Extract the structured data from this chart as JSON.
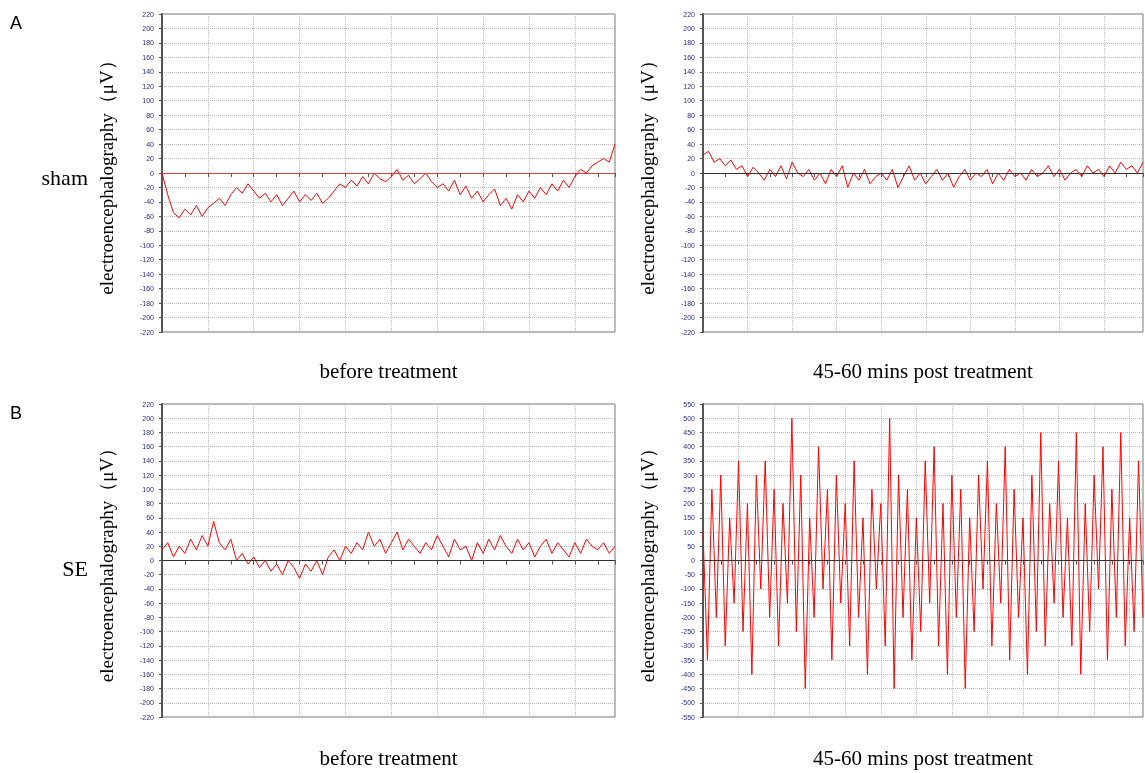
{
  "chart_data": [
    {
      "type": "line",
      "xlabel": "before treatment",
      "ylabel": "electroencephalography（μV）",
      "annotations": [
        "A",
        "sham"
      ],
      "grid": true,
      "tick_labels": "y",
      "line_style": "solid",
      "ylim": [
        -220,
        220
      ],
      "yticks": [
        -220,
        -200,
        -180,
        -160,
        -140,
        -120,
        -100,
        -80,
        -60,
        -40,
        -20,
        0,
        20,
        40,
        60,
        80,
        100,
        120,
        140,
        160,
        180,
        200,
        220
      ],
      "ref_lines": [
        {
          "axis": "y",
          "value": 0,
          "color": "#e03c3c"
        }
      ],
      "categories": [
        null,
        null,
        null,
        null,
        null,
        null,
        null,
        null,
        null,
        null,
        null,
        null,
        null,
        null,
        null,
        null,
        null,
        null,
        null,
        null,
        null,
        null,
        null,
        null,
        null,
        null,
        null,
        null,
        null,
        null,
        null,
        null,
        null,
        null,
        null,
        null,
        null,
        null,
        null,
        null,
        null,
        null,
        null,
        null,
        null,
        null,
        null,
        null,
        null,
        null,
        null,
        null,
        null,
        null,
        null,
        null,
        null,
        null,
        null,
        null,
        null,
        null,
        null,
        null,
        null,
        null,
        null,
        null,
        null,
        null,
        null,
        null,
        null,
        null,
        null,
        null,
        null,
        null,
        null,
        null
      ],
      "series": [
        {
          "color": "#ff0000",
          "values": [
            0,
            -30,
            -55,
            -62,
            -50,
            -58,
            -45,
            -60,
            -48,
            -42,
            -35,
            -45,
            -30,
            -20,
            -28,
            -15,
            -25,
            -35,
            -28,
            -40,
            -30,
            -45,
            -35,
            -25,
            -40,
            -30,
            -38,
            -28,
            -42,
            -35,
            -25,
            -15,
            -20,
            -10,
            -18,
            -5,
            -15,
            0,
            -8,
            -12,
            -5,
            5,
            -10,
            -3,
            -15,
            -8,
            0,
            -12,
            -20,
            -15,
            -25,
            -10,
            -30,
            -18,
            -35,
            -25,
            -40,
            -30,
            -22,
            -45,
            -35,
            -50,
            -30,
            -40,
            -25,
            -35,
            -20,
            -30,
            -15,
            -25,
            -10,
            -20,
            -5,
            5,
            0,
            10,
            15,
            20,
            15,
            40
          ]
        }
      ]
    },
    {
      "type": "line",
      "xlabel": "45-60 mins post treatment",
      "ylabel": "electroencephalography（μV）",
      "grid": true,
      "tick_labels": "y",
      "line_style": "solid",
      "ylim": [
        -220,
        220
      ],
      "yticks": [
        -220,
        -200,
        -180,
        -160,
        -140,
        -120,
        -100,
        -80,
        -60,
        -40,
        -20,
        0,
        20,
        40,
        60,
        80,
        100,
        120,
        140,
        160,
        180,
        200,
        220
      ],
      "ref_lines": [
        {
          "axis": "y",
          "value": 0,
          "color": "#333333"
        }
      ],
      "categories": [
        null,
        null,
        null,
        null,
        null,
        null,
        null,
        null,
        null,
        null,
        null,
        null,
        null,
        null,
        null,
        null,
        null,
        null,
        null,
        null,
        null,
        null,
        null,
        null,
        null,
        null,
        null,
        null,
        null,
        null,
        null,
        null,
        null,
        null,
        null,
        null,
        null,
        null,
        null,
        null,
        null,
        null,
        null,
        null,
        null,
        null,
        null,
        null,
        null,
        null,
        null,
        null,
        null,
        null,
        null,
        null,
        null,
        null,
        null,
        null,
        null,
        null,
        null,
        null,
        null,
        null,
        null,
        null,
        null,
        null,
        null,
        null,
        null,
        null,
        null,
        null,
        null,
        null,
        null,
        null
      ],
      "series": [
        {
          "color": "#ff0000",
          "values": [
            25,
            30,
            15,
            20,
            10,
            18,
            5,
            10,
            -5,
            8,
            0,
            -10,
            5,
            -5,
            10,
            -8,
            15,
            0,
            -5,
            5,
            -10,
            0,
            -15,
            5,
            -5,
            10,
            -20,
            0,
            -10,
            5,
            -15,
            -5,
            0,
            -10,
            5,
            -20,
            -5,
            10,
            -10,
            0,
            -15,
            -5,
            5,
            -10,
            0,
            -20,
            -5,
            5,
            -10,
            0,
            -5,
            5,
            -15,
            0,
            -10,
            5,
            -5,
            0,
            -10,
            5,
            -5,
            0,
            10,
            -5,
            5,
            -10,
            0,
            5,
            -5,
            10,
            0,
            5,
            -5,
            10,
            0,
            15,
            5,
            10,
            0,
            15
          ]
        }
      ]
    },
    {
      "type": "line",
      "xlabel": "before treatment",
      "ylabel": "electroencephalography（μV）",
      "annotations": [
        "B",
        "SE"
      ],
      "grid": true,
      "tick_labels": "y",
      "line_style": "solid",
      "ylim": [
        -220,
        220
      ],
      "yticks": [
        -220,
        -200,
        -180,
        -160,
        -140,
        -120,
        -100,
        -80,
        -60,
        -40,
        -20,
        0,
        20,
        40,
        60,
        80,
        100,
        120,
        140,
        160,
        180,
        200,
        220
      ],
      "ref_lines": [
        {
          "axis": "y",
          "value": 0,
          "color": "#333333"
        }
      ],
      "categories": [
        null,
        null,
        null,
        null,
        null,
        null,
        null,
        null,
        null,
        null,
        null,
        null,
        null,
        null,
        null,
        null,
        null,
        null,
        null,
        null,
        null,
        null,
        null,
        null,
        null,
        null,
        null,
        null,
        null,
        null,
        null,
        null,
        null,
        null,
        null,
        null,
        null,
        null,
        null,
        null,
        null,
        null,
        null,
        null,
        null,
        null,
        null,
        null,
        null,
        null,
        null,
        null,
        null,
        null,
        null,
        null,
        null,
        null,
        null,
        null,
        null,
        null,
        null,
        null,
        null,
        null,
        null,
        null,
        null,
        null,
        null,
        null,
        null,
        null,
        null,
        null,
        null,
        null,
        null,
        null
      ],
      "series": [
        {
          "color": "#ff0000",
          "values": [
            15,
            25,
            5,
            20,
            10,
            30,
            15,
            35,
            20,
            55,
            25,
            15,
            30,
            0,
            10,
            -5,
            5,
            -10,
            0,
            -15,
            -5,
            -20,
            0,
            -10,
            -25,
            -5,
            -15,
            0,
            -20,
            5,
            15,
            0,
            20,
            10,
            25,
            15,
            40,
            20,
            30,
            10,
            25,
            40,
            15,
            30,
            20,
            10,
            25,
            15,
            35,
            20,
            5,
            30,
            15,
            20,
            0,
            25,
            10,
            30,
            15,
            35,
            20,
            10,
            30,
            15,
            25,
            5,
            20,
            30,
            10,
            25,
            15,
            5,
            25,
            10,
            30,
            20,
            15,
            25,
            10,
            20
          ]
        }
      ]
    },
    {
      "type": "line",
      "xlabel": "45-60 mins post treatment",
      "ylabel": "electroencephalography（μV）",
      "grid": true,
      "tick_labels": "y",
      "line_style": "solid",
      "ylim": [
        -550,
        550
      ],
      "yticks": [
        -550,
        -500,
        -450,
        -400,
        -350,
        -300,
        -250,
        -200,
        -150,
        -100,
        -50,
        0,
        50,
        100,
        150,
        200,
        250,
        300,
        350,
        400,
        450,
        500,
        550
      ],
      "ref_lines": [
        {
          "axis": "y",
          "value": 0,
          "color": "#333333"
        }
      ],
      "categories": [
        null,
        null,
        null,
        null,
        null,
        null,
        null,
        null,
        null,
        null,
        null,
        null,
        null,
        null,
        null,
        null,
        null,
        null,
        null,
        null,
        null,
        null,
        null,
        null,
        null,
        null,
        null,
        null,
        null,
        null,
        null,
        null,
        null,
        null,
        null,
        null,
        null,
        null,
        null,
        null,
        null,
        null,
        null,
        null,
        null,
        null,
        null,
        null,
        null,
        null,
        null,
        null,
        null,
        null,
        null,
        null,
        null,
        null,
        null,
        null,
        null,
        null,
        null,
        null,
        null,
        null,
        null,
        null,
        null,
        null,
        null,
        null,
        null,
        null,
        null,
        null,
        null,
        null,
        null,
        null,
        null,
        null,
        null,
        null,
        null,
        null,
        null,
        null,
        null,
        null,
        null,
        null,
        null,
        null,
        null,
        null,
        null,
        null,
        null,
        null
      ],
      "series": [
        {
          "color": "#ff0000",
          "values": [
            100,
            -350,
            250,
            -200,
            300,
            -300,
            150,
            -150,
            350,
            -250,
            200,
            -400,
            300,
            -100,
            350,
            -200,
            250,
            -300,
            200,
            -150,
            500,
            -250,
            300,
            -450,
            150,
            -200,
            400,
            -100,
            250,
            -350,
            300,
            -150,
            200,
            -300,
            350,
            -200,
            150,
            -400,
            250,
            -100,
            200,
            -300,
            500,
            -450,
            300,
            -200,
            250,
            -350,
            150,
            -250,
            350,
            -150,
            400,
            -300,
            200,
            -400,
            300,
            -200,
            250,
            -450,
            150,
            -250,
            300,
            -100,
            350,
            -300,
            200,
            -150,
            400,
            -350,
            250,
            -200,
            150,
            -400,
            300,
            -250,
            450,
            -300,
            200,
            -150,
            350,
            -200,
            150,
            -300,
            450,
            -400,
            200,
            -250,
            300,
            -100,
            400,
            -350,
            250,
            -200,
            450,
            -300,
            150,
            -250,
            350,
            -200
          ]
        }
      ]
    }
  ]
}
